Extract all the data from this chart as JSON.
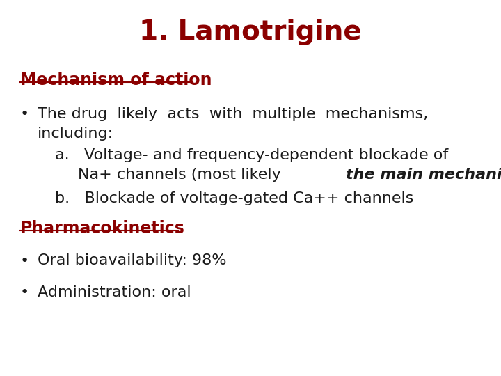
{
  "title": "1. Lamotrigine",
  "title_color": "#8B0000",
  "title_fontsize": 28,
  "background_color": "#FFFFFF",
  "dark_red": "#8B0000",
  "black": "#1a1a1a",
  "section1_label": "Mechanism of action",
  "section1_fontsize": 17,
  "bullet1_line1": "The drug  likely  acts  with  multiple  mechanisms,",
  "bullet1_line2": "including:",
  "bullet1_fontsize": 16,
  "sub_a_line1": "a.   Voltage- and frequency-dependent blockade of",
  "sub_a_line2_normal1": "Na+ channels (most likely ",
  "sub_a_line2_italic": "the main mechanism",
  "sub_a_line2_end": ").",
  "sub_b_text": "b.   Blockade of voltage-gated Ca++ channels",
  "sub_fontsize": 16,
  "section2_label": "Pharmacokinetics",
  "section2_fontsize": 17,
  "bullet2_text": "Oral bioavailability: 98%",
  "bullet3_text": "Administration: oral",
  "bullet_fontsize": 16
}
